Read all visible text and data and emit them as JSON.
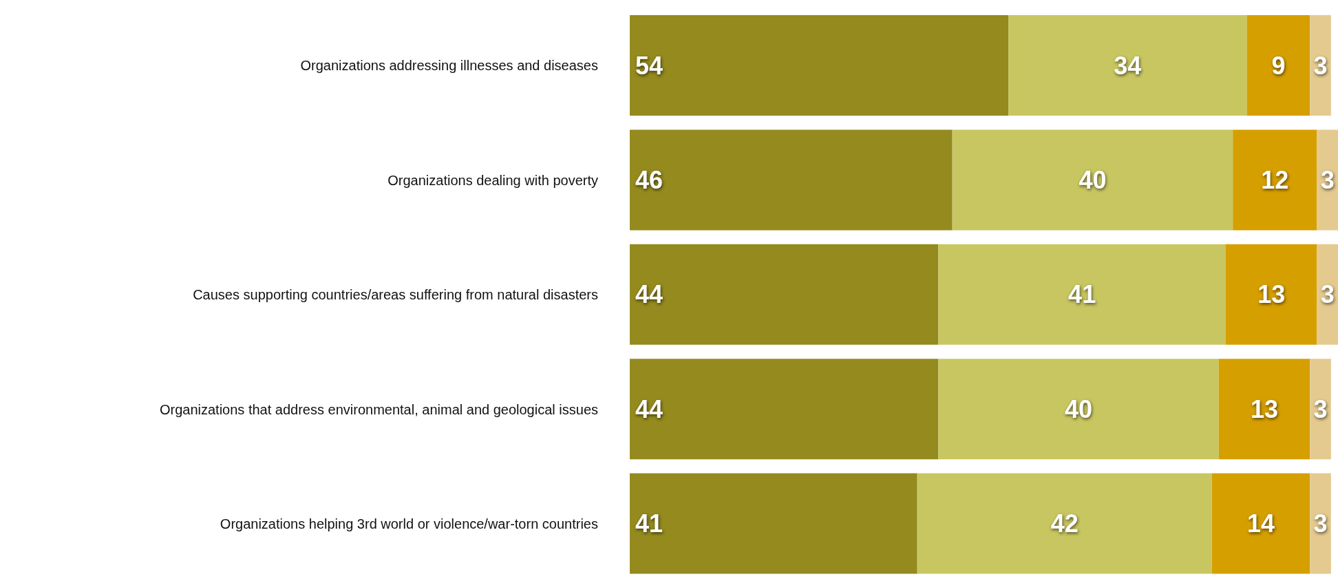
{
  "chart_data": {
    "type": "bar",
    "orientation": "horizontal",
    "stacked": true,
    "categories": [
      "Organizations addressing illnesses and diseases",
      "Organizations dealing with poverty",
      "Causes supporting countries/areas suffering from natural disasters",
      "Organizations that address environmental, animal and geological issues",
      "Organizations helping 3rd world or violence/war-torn countries"
    ],
    "series": [
      {
        "color": "#948a1e",
        "values": [
          54,
          46,
          44,
          44,
          41
        ]
      },
      {
        "color": "#c8c660",
        "values": [
          34,
          40,
          41,
          40,
          42
        ]
      },
      {
        "color": "#d69f00",
        "values": [
          9,
          12,
          13,
          13,
          14
        ]
      },
      {
        "color": "#e4ca8f",
        "values": [
          3,
          3,
          3,
          3,
          3
        ]
      }
    ],
    "xlim": [
      0,
      101
    ],
    "tick_labels": "y",
    "grid": false,
    "legend": false,
    "data_labels": true
  }
}
